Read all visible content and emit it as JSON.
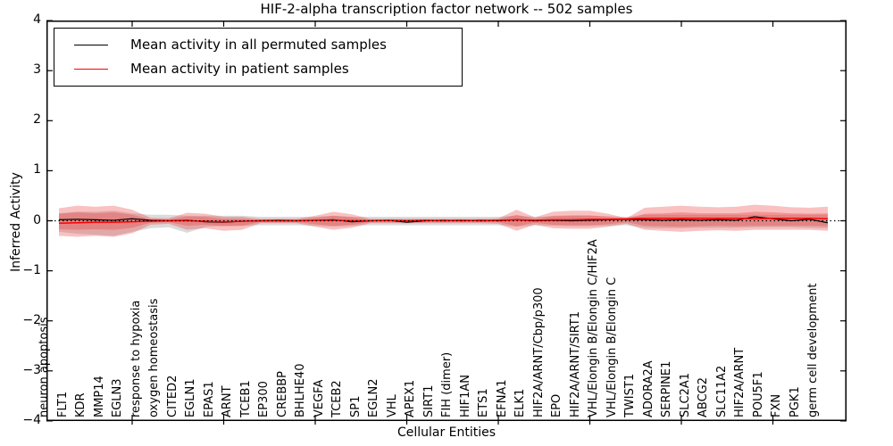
{
  "title": "HIF-2-alpha transcription factor network -- 502 samples",
  "ylabel": "Inferred Activity",
  "xlabel": "Cellular Entities",
  "legend": {
    "items": [
      {
        "label": "Mean activity in all permuted samples",
        "color": "#000000"
      },
      {
        "label": "Mean activity in patient samples",
        "color": "#ff0000"
      }
    ]
  },
  "chart_data": {
    "type": "line",
    "title": "HIF-2-alpha transcription factor network -- 502 samples",
    "xlabel": "Cellular Entities",
    "ylabel": "Inferred Activity",
    "ylim": [
      -4,
      4
    ],
    "ytick_labels": [
      "4",
      "3",
      "2",
      "1",
      "0",
      "−1",
      "−2",
      "−3",
      "−4"
    ],
    "ytick_values": [
      4,
      3,
      2,
      1,
      0,
      -1,
      -2,
      -3,
      -4
    ],
    "x_major_tick_indices": [
      4,
      9,
      14,
      19,
      24,
      29,
      34,
      39
    ],
    "grid": false,
    "legend_position": "upper left",
    "zero_reference_line": 0,
    "categories": [
      "neuron apoptosis",
      "FLT1",
      "KDR",
      "MMP14",
      "EGLN3",
      "response to hypoxia",
      "oxygen homeostasis",
      "CITED2",
      "EGLN1",
      "EPAS1",
      "ARNT",
      "TCEB1",
      "EP300",
      "CREBBP",
      "BHLHE40",
      "VEGFA",
      "TCEB2",
      "SP1",
      "EGLN2",
      "VHL",
      "APEX1",
      "SIRT1",
      "FIH (dimer)",
      "HIF1AN",
      "ETS1",
      "EFNA1",
      "ELK1",
      "HIF2A/ARNT/Cbp/p300",
      "EPO",
      "HIF2A/ARNT/SIRT1",
      "VHL/Elongin B/Elongin C/HIF2A",
      "VHL/Elongin B/Elongin C",
      "TWIST1",
      "ADORA2A",
      "SERPINE1",
      "SLC2A1",
      "ABCG2",
      "SLC11A2",
      "HIF2A/ARNT",
      "POU5F1",
      "FXN",
      "PGK1",
      "germ cell development"
    ],
    "series": [
      {
        "name": "Mean activity in all permuted samples",
        "color": "#000000",
        "width": 1.2,
        "values": [
          0.02,
          0.03,
          0.02,
          0.01,
          0.04,
          0.01,
          0.0,
          0.01,
          -0.02,
          -0.03,
          -0.01,
          0.0,
          0.01,
          0.0,
          0.01,
          0.02,
          -0.02,
          0.0,
          0.01,
          -0.03,
          0.0,
          0.01,
          0.0,
          0.01,
          0.0,
          0.02,
          0.0,
          0.01,
          0.0,
          0.01,
          0.02,
          0.03,
          0.02,
          0.01,
          0.02,
          0.01,
          0.02,
          0.01,
          0.08,
          0.04,
          0.0,
          0.03,
          -0.04
        ]
      },
      {
        "name": "Mean activity in patient samples",
        "color": "#ff0000",
        "width": 1.5,
        "values": [
          -0.05,
          -0.04,
          -0.03,
          -0.03,
          -0.02,
          -0.01,
          0.0,
          0.0,
          -0.01,
          -0.02,
          -0.01,
          0.0,
          0.0,
          0.0,
          0.01,
          0.01,
          0.0,
          0.0,
          0.01,
          0.0,
          0.01,
          0.0,
          0.01,
          0.0,
          0.01,
          0.02,
          0.01,
          0.02,
          0.02,
          0.03,
          0.03,
          0.04,
          0.05,
          0.05,
          0.05,
          0.05,
          0.05,
          0.05,
          0.04,
          0.05,
          0.05,
          0.05,
          0.04
        ]
      }
    ],
    "bands": [
      {
        "name": "permuted-std-band",
        "color": "rgba(125,125,125,0.28)",
        "upper": [
          0.15,
          0.18,
          0.18,
          0.2,
          0.15,
          0.12,
          0.12,
          0.1,
          0.1,
          0.1,
          0.1,
          0.08,
          0.08,
          0.08,
          0.08,
          0.1,
          0.08,
          0.08,
          0.08,
          0.08,
          0.08,
          0.08,
          0.08,
          0.08,
          0.08,
          0.1,
          0.08,
          0.09,
          0.1,
          0.1,
          0.09,
          0.08,
          0.12,
          0.12,
          0.12,
          0.12,
          0.12,
          0.12,
          0.12,
          0.12,
          0.12,
          0.12,
          0.12
        ],
        "lower": [
          -0.22,
          -0.26,
          -0.28,
          -0.3,
          -0.22,
          -0.15,
          -0.13,
          -0.24,
          -0.12,
          -0.1,
          -0.1,
          -0.09,
          -0.09,
          -0.09,
          -0.1,
          -0.12,
          -0.1,
          -0.09,
          -0.09,
          -0.09,
          -0.09,
          -0.09,
          -0.09,
          -0.09,
          -0.09,
          -0.12,
          -0.09,
          -0.1,
          -0.11,
          -0.11,
          -0.1,
          -0.09,
          -0.14,
          -0.15,
          -0.15,
          -0.14,
          -0.14,
          -0.14,
          -0.13,
          -0.13,
          -0.13,
          -0.14,
          -0.15
        ]
      },
      {
        "name": "patient-std-band",
        "color": "rgba(235,50,50,0.30)",
        "upper": [
          0.25,
          0.3,
          0.28,
          0.3,
          0.22,
          0.06,
          0.05,
          0.16,
          0.14,
          0.08,
          0.08,
          0.04,
          0.04,
          0.04,
          0.1,
          0.18,
          0.13,
          0.04,
          0.04,
          0.04,
          0.04,
          0.04,
          0.04,
          0.04,
          0.05,
          0.22,
          0.07,
          0.18,
          0.2,
          0.2,
          0.14,
          0.05,
          0.26,
          0.28,
          0.3,
          0.28,
          0.27,
          0.28,
          0.32,
          0.3,
          0.27,
          0.26,
          0.28
        ],
        "lower": [
          -0.3,
          -0.32,
          -0.3,
          -0.32,
          -0.25,
          -0.08,
          -0.06,
          -0.18,
          -0.15,
          -0.2,
          -0.18,
          -0.05,
          -0.05,
          -0.05,
          -0.12,
          -0.18,
          -0.14,
          -0.05,
          -0.05,
          -0.05,
          -0.05,
          -0.05,
          -0.05,
          -0.05,
          -0.06,
          -0.2,
          -0.08,
          -0.15,
          -0.16,
          -0.16,
          -0.12,
          -0.06,
          -0.18,
          -0.2,
          -0.22,
          -0.2,
          -0.19,
          -0.2,
          -0.18,
          -0.18,
          -0.18,
          -0.18,
          -0.2
        ]
      },
      {
        "name": "patient-std-inner-band",
        "color": "rgba(235,50,50,0.30)",
        "upper": [
          0.14,
          0.17,
          0.15,
          0.17,
          0.12,
          0.03,
          0.03,
          0.09,
          0.08,
          0.04,
          0.04,
          0.02,
          0.02,
          0.02,
          0.06,
          0.1,
          0.07,
          0.02,
          0.02,
          0.02,
          0.02,
          0.02,
          0.02,
          0.02,
          0.03,
          0.12,
          0.04,
          0.1,
          0.11,
          0.11,
          0.08,
          0.03,
          0.14,
          0.15,
          0.17,
          0.15,
          0.15,
          0.15,
          0.18,
          0.17,
          0.15,
          0.14,
          0.15
        ],
        "lower": [
          -0.17,
          -0.18,
          -0.17,
          -0.18,
          -0.14,
          -0.04,
          -0.03,
          -0.1,
          -0.08,
          -0.11,
          -0.1,
          -0.03,
          -0.03,
          -0.03,
          -0.07,
          -0.1,
          -0.08,
          -0.03,
          -0.03,
          -0.03,
          -0.03,
          -0.03,
          -0.03,
          -0.03,
          -0.03,
          -0.11,
          -0.04,
          -0.08,
          -0.09,
          -0.09,
          -0.07,
          -0.03,
          -0.1,
          -0.11,
          -0.12,
          -0.11,
          -0.1,
          -0.11,
          -0.1,
          -0.1,
          -0.1,
          -0.1,
          -0.11
        ]
      }
    ]
  }
}
